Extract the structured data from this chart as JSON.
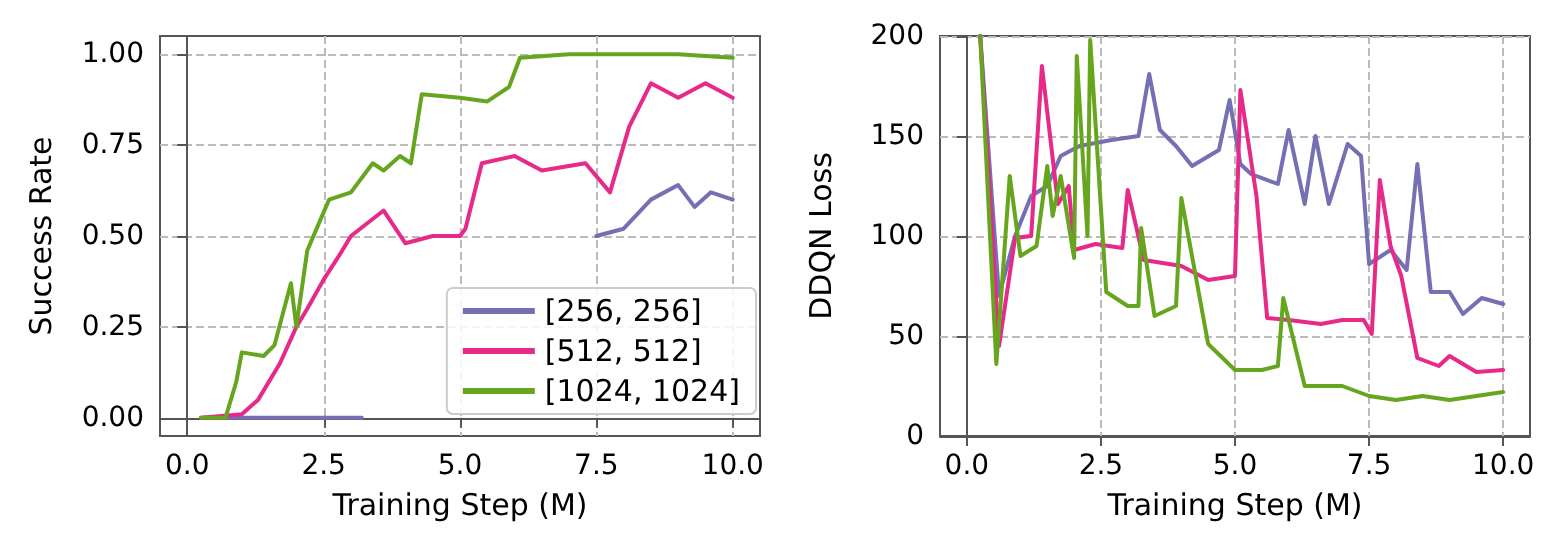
{
  "chart_data": [
    {
      "type": "line",
      "xlabel": "Training Step (M)",
      "ylabel": "Success Rate",
      "xlim": [
        -0.5,
        10.5
      ],
      "ylim": [
        -0.05,
        1.05
      ],
      "xticks": [
        {
          "value": 0,
          "label": "0.0"
        },
        {
          "value": 2.5,
          "label": "2.5"
        },
        {
          "value": 5,
          "label": "5.0"
        },
        {
          "value": 7.5,
          "label": "7.5"
        },
        {
          "value": 10,
          "label": "10.0"
        }
      ],
      "yticks": [
        {
          "value": 0,
          "label": "0.00"
        },
        {
          "value": 0.25,
          "label": "0.25"
        },
        {
          "value": 0.5,
          "label": "0.50"
        },
        {
          "value": 0.75,
          "label": "0.75"
        },
        {
          "value": 1,
          "label": "1.00"
        }
      ],
      "grid": true,
      "legend": "bottom right",
      "line_style": "solid",
      "marker": "none",
      "series": [
        {
          "name": "[256, 256]",
          "color": "#7570b3",
          "x": [
            0.3,
            1,
            2,
            3,
            3.2,
            3.3,
            7.4,
            7.5,
            8,
            8.5,
            9,
            9.3,
            9.6,
            10
          ],
          "values": [
            0,
            0,
            0,
            0,
            0,
            null,
            null,
            0.5,
            0.52,
            0.6,
            0.64,
            0.58,
            0.62,
            0.6
          ]
        },
        {
          "name": "[512, 512]",
          "color": "#e7298a",
          "x": [
            0.25,
            1,
            1.3,
            1.7,
            2,
            2.2,
            2.5,
            2.8,
            3,
            3.6,
            4,
            4.5,
            5,
            5.1,
            5.4,
            6,
            6.5,
            7.3,
            7.75,
            8.1,
            8.5,
            9,
            9.5,
            10
          ],
          "values": [
            0,
            0.01,
            0.05,
            0.15,
            0.25,
            0.3,
            0.38,
            0.45,
            0.5,
            0.57,
            0.48,
            0.5,
            0.5,
            0.52,
            0.7,
            0.72,
            0.68,
            0.7,
            0.62,
            0.8,
            0.92,
            0.88,
            0.92,
            0.88
          ]
        },
        {
          "name": "[1024, 1024]",
          "color": "#66a61e",
          "x": [
            0.25,
            0.7,
            0.9,
            1,
            1.4,
            1.6,
            1.9,
            2,
            2.2,
            2.6,
            3,
            3.4,
            3.6,
            3.9,
            4.1,
            4.3,
            5,
            5.5,
            5.9,
            6.1,
            7,
            8,
            9,
            10
          ],
          "values": [
            0,
            0,
            0.1,
            0.18,
            0.17,
            0.2,
            0.37,
            0.25,
            0.46,
            0.6,
            0.62,
            0.7,
            0.68,
            0.72,
            0.7,
            0.89,
            0.88,
            0.87,
            0.91,
            0.99,
            1,
            1,
            1,
            0.99
          ]
        }
      ]
    },
    {
      "type": "line",
      "xlabel": "Training Step (M)",
      "ylabel": "DDQN Loss",
      "xlim": [
        -0.5,
        10.5
      ],
      "ylim": [
        0,
        200
      ],
      "xticks": [
        {
          "value": 0,
          "label": "0.0"
        },
        {
          "value": 2.5,
          "label": "2.5"
        },
        {
          "value": 5,
          "label": "5.0"
        },
        {
          "value": 7.5,
          "label": "7.5"
        },
        {
          "value": 10,
          "label": "10.0"
        }
      ],
      "yticks": [
        0,
        50,
        100,
        150,
        200
      ],
      "grid": true,
      "line_style": "solid",
      "marker": "none",
      "series": [
        {
          "color": "#7570b3",
          "x": [
            0.25,
            0.6,
            0.9,
            1.2,
            1.5,
            1.75,
            2.1,
            2.7,
            3.2,
            3.4,
            3.6,
            3.9,
            4.2,
            4.7,
            4.9,
            5.1,
            5.3,
            5.8,
            6,
            6.3,
            6.5,
            6.75,
            7.1,
            7.35,
            7.5,
            7.9,
            8.2,
            8.4,
            8.65,
            9,
            9.25,
            9.6,
            10
          ],
          "values": [
            200,
            70,
            100,
            120,
            125,
            140,
            145,
            148,
            150,
            181,
            153,
            145,
            135,
            143,
            168,
            136,
            131,
            126,
            153,
            116,
            150,
            116,
            146,
            140,
            86,
            93,
            83,
            136,
            72,
            72,
            61,
            69,
            66
          ]
        },
        {
          "color": "#e7298a",
          "x": [
            0.25,
            0.6,
            0.9,
            1.2,
            1.4,
            1.7,
            1.9,
            2,
            2.4,
            2.9,
            3,
            3.3,
            4,
            4.5,
            5,
            5.1,
            5.4,
            5.6,
            6,
            6.6,
            7,
            7.4,
            7.55,
            7.7,
            7.9,
            8.1,
            8.4,
            8.8,
            9,
            9.5,
            10
          ],
          "values": [
            200,
            45,
            99,
            100,
            185,
            116,
            125,
            93,
            96,
            94,
            123,
            88,
            85,
            78,
            80,
            173,
            120,
            59,
            58,
            56,
            58,
            58,
            51,
            128,
            95,
            80,
            39,
            35,
            40,
            32,
            33
          ]
        },
        {
          "color": "#66a61e",
          "x": [
            0.25,
            0.55,
            0.8,
            1,
            1.3,
            1.5,
            1.6,
            1.75,
            2,
            2.05,
            2.25,
            2.3,
            2.6,
            3,
            3.2,
            3.25,
            3.5,
            3.9,
            4,
            4.5,
            5,
            5.5,
            5.8,
            5.9,
            6.3,
            7,
            7.5,
            8,
            8.5,
            9,
            9.5,
            10
          ],
          "values": [
            200,
            36,
            130,
            90,
            95,
            135,
            110,
            130,
            89,
            190,
            100,
            198,
            72,
            65,
            65,
            104,
            60,
            65,
            119,
            46,
            33,
            33,
            35,
            69,
            25,
            25,
            20,
            18,
            20,
            18,
            20,
            22
          ]
        }
      ]
    }
  ]
}
